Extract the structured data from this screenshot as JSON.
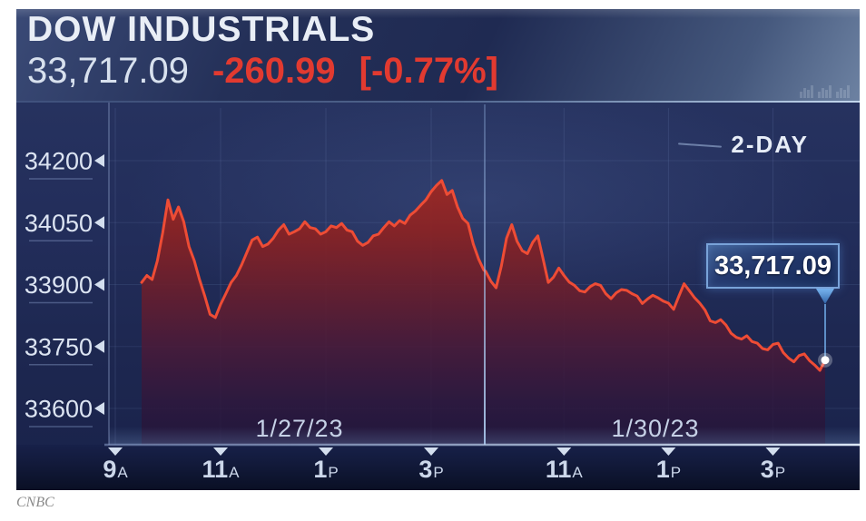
{
  "header": {
    "title": "DOW INDUSTRIALS",
    "price": "33,717.09",
    "change": "-260.99",
    "change_pct": "[-0.77%]"
  },
  "legend": {
    "label": "2-DAY"
  },
  "callout": {
    "value": "33,717.09"
  },
  "attribution": "CNBC",
  "colors": {
    "negative_red": "#e23a30",
    "line_red": "#ee4c35",
    "fill_dark_red": "#8c2222",
    "fill_purple": "#3a1840",
    "background_navy": "#1e2a55",
    "callout_border": "#79a3d9",
    "axis_text": "#dce4f2"
  },
  "chart_data": {
    "type": "area",
    "title": "DOW INDUSTRIALS 2-day intraday",
    "legend": "2-DAY",
    "last_price": 33717.09,
    "ylim": [
      33600,
      34200
    ],
    "yticks": [
      34200,
      34050,
      33900,
      33750,
      33600
    ],
    "grid": true,
    "days": [
      {
        "date": "1/27/23",
        "session": [
          9.0,
          16.0
        ],
        "data_session": [
          9.5,
          16.0
        ],
        "ticks": [
          {
            "num": "9",
            "ap": "A",
            "hour": 9
          },
          {
            "num": "11",
            "ap": "A",
            "hour": 11
          },
          {
            "num": "1",
            "ap": "P",
            "hour": 13
          },
          {
            "num": "3",
            "ap": "P",
            "hour": 15
          }
        ],
        "values": [
          33905,
          33922,
          33912,
          33958,
          34025,
          34105,
          34058,
          34088,
          34052,
          33992,
          33958,
          33912,
          33872,
          33828,
          33820,
          33852,
          33878,
          33905,
          33922,
          33948,
          33978,
          34008,
          34015,
          33992,
          33998,
          34012,
          34032,
          34045,
          34022,
          34028,
          34035,
          34052,
          34038,
          34035,
          34022,
          34028,
          34042,
          34038,
          34048,
          34032,
          34028,
          34005,
          33995,
          34002,
          34018,
          34022,
          34038,
          34052,
          34042,
          34055,
          34048,
          34068,
          34078,
          34092,
          34105,
          34125,
          34140,
          34152,
          34118,
          34128,
          34088,
          34060,
          34048,
          33998,
          33962,
          33935
        ]
      },
      {
        "date": "1/30/23",
        "session": [
          9.5,
          16.0
        ],
        "data_session": [
          9.5,
          16.0
        ],
        "ticks": [
          {
            "num": "11",
            "ap": "A",
            "hour": 11
          },
          {
            "num": "1",
            "ap": "P",
            "hour": 13
          },
          {
            "num": "3",
            "ap": "P",
            "hour": 15
          }
        ],
        "values": [
          33932,
          33908,
          33892,
          33945,
          34012,
          34045,
          34005,
          33982,
          33975,
          34002,
          34018,
          33962,
          33905,
          33918,
          33940,
          33922,
          33906,
          33898,
          33885,
          33882,
          33895,
          33902,
          33898,
          33878,
          33866,
          33880,
          33888,
          33886,
          33878,
          33872,
          33854,
          33865,
          33874,
          33868,
          33860,
          33855,
          33840,
          33872,
          33902,
          33885,
          33868,
          33855,
          33838,
          33812,
          33808,
          33815,
          33802,
          33782,
          33772,
          33768,
          33776,
          33762,
          33758,
          33745,
          33742,
          33755,
          33758,
          33735,
          33722,
          33713,
          33728,
          33732,
          33716,
          33705,
          33692,
          33717.09
        ]
      }
    ]
  }
}
